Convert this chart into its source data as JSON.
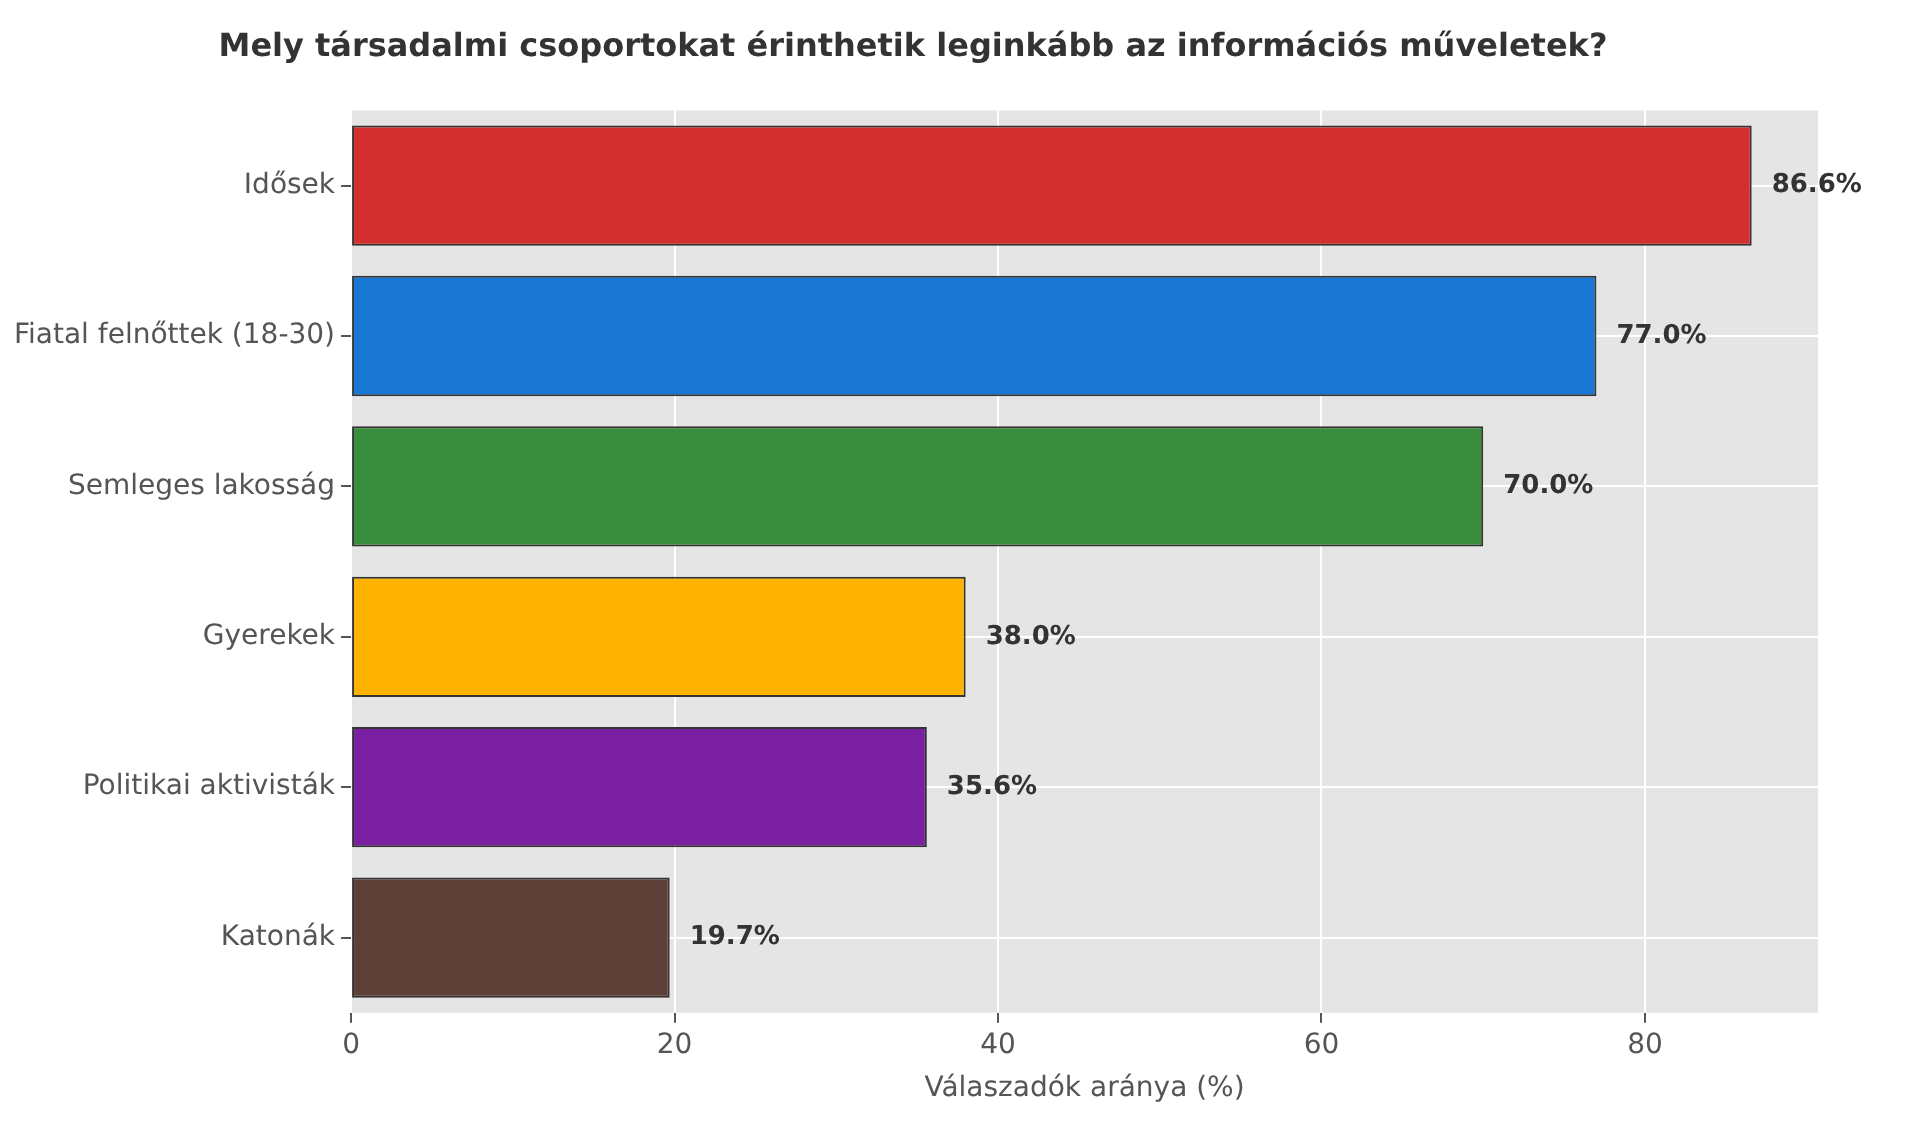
{
  "chart_data": {
    "type": "bar",
    "orientation": "horizontal",
    "title": "Mely társadalmi csoportokat érinthetik leginkább az információs műveletek?",
    "xlabel": "Válaszadók aránya (%)",
    "categories": [
      "Idősek",
      "Fiatal felnőttek (18-30)",
      "Semleges lakosság",
      "Gyerekek",
      "Politikai aktivisták",
      "Katonák"
    ],
    "values": [
      86.6,
      77.0,
      70.0,
      38.0,
      35.6,
      19.7
    ],
    "colors": [
      "#d32f2f",
      "#1976d2",
      "#388e3c",
      "#ffb300",
      "#7b1fa2",
      "#5d4037"
    ],
    "value_labels": [
      "86.6%",
      "77.0%",
      "70.0%",
      "38.0%",
      "35.6%",
      "19.7%"
    ],
    "xlim": [
      0,
      90.7
    ],
    "xticks": [
      0,
      20,
      40,
      60,
      80
    ],
    "grid": true,
    "legend": false
  }
}
